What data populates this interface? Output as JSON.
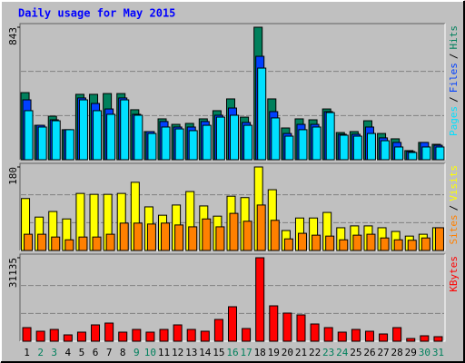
{
  "chart_data": [
    {
      "type": "bar",
      "title": "Daily usage for May 2015",
      "ylim": [
        0,
        843
      ],
      "yticks": [
        843
      ],
      "gridlines": [
        281,
        562
      ],
      "legend_separator": "/",
      "series": [
        {
          "name": "Hits",
          "color": "#00805c",
          "values": [
            427,
            219,
            277,
            191,
            416,
            416,
            421,
            421,
            318,
            179,
            260,
            225,
            231,
            260,
            312,
            387,
            271,
            843,
            387,
            202,
            260,
            254,
            323,
            173,
            179,
            248,
            167,
            133,
            58,
            110,
            98
          ]
        },
        {
          "name": "Files",
          "color": "#0040ff",
          "values": [
            381,
            219,
            254,
            191,
            393,
            358,
            323,
            393,
            289,
            179,
            243,
            208,
            208,
            243,
            283,
            329,
            237,
            658,
            306,
            167,
            225,
            225,
            306,
            162,
            162,
            208,
            139,
            110,
            52,
            110,
            92
          ]
        },
        {
          "name": "Pages",
          "color": "#00e0ff",
          "values": [
            312,
            208,
            248,
            191,
            381,
            312,
            289,
            381,
            283,
            167,
            208,
            196,
            185,
            219,
            271,
            283,
            219,
            583,
            266,
            150,
            191,
            208,
            300,
            156,
            150,
            167,
            121,
            81,
            46,
            81,
            81
          ]
        }
      ]
    },
    {
      "type": "bar",
      "ylim": [
        0,
        180
      ],
      "yticks": [
        180
      ],
      "gridlines": [
        60,
        120
      ],
      "series": [
        {
          "name": "Visits",
          "color": "#ffff00",
          "values": [
            112,
            72,
            84,
            68,
            123,
            121,
            121,
            123,
            147,
            94,
            76,
            98,
            127,
            96,
            74,
            117,
            114,
            180,
            131,
            43,
            70,
            70,
            82,
            49,
            53,
            53,
            49,
            41,
            31,
            35,
            49
          ]
        },
        {
          "name": "Sites",
          "color": "#ff8000",
          "values": [
            35,
            35,
            29,
            23,
            29,
            29,
            35,
            59,
            59,
            57,
            59,
            55,
            51,
            68,
            51,
            80,
            63,
            98,
            65,
            25,
            37,
            33,
            31,
            23,
            33,
            35,
            27,
            23,
            22,
            27,
            49
          ]
        }
      ]
    },
    {
      "type": "bar",
      "ylim": [
        0,
        31135
      ],
      "yticks": [
        31135
      ],
      "gridlines": [
        10378,
        20757
      ],
      "categories": [
        "1",
        "2",
        "3",
        "4",
        "5",
        "6",
        "7",
        "8",
        "9",
        "10",
        "11",
        "12",
        "13",
        "14",
        "15",
        "16",
        "17",
        "18",
        "19",
        "20",
        "21",
        "22",
        "23",
        "24",
        "25",
        "26",
        "27",
        "28",
        "29",
        "30",
        "31"
      ],
      "category_colors": [
        "#000000",
        "#00805c",
        "#00805c",
        "#000000",
        "#000000",
        "#000000",
        "#000000",
        "#000000",
        "#00805c",
        "#00805c",
        "#000000",
        "#000000",
        "#000000",
        "#000000",
        "#000000",
        "#00805c",
        "#00805c",
        "#000000",
        "#000000",
        "#000000",
        "#000000",
        "#000000",
        "#00805c",
        "#00805c",
        "#000000",
        "#000000",
        "#000000",
        "#000000",
        "#000000",
        "#00805c",
        "#00805c"
      ],
      "series": [
        {
          "name": "KBytes",
          "color": "#ff0000",
          "values": [
            5076,
            3722,
            4399,
            2369,
            3384,
            6091,
            6768,
            3384,
            4399,
            3384,
            4399,
            6091,
            4399,
            3722,
            8122,
            12859,
            4738,
            31135,
            13198,
            10490,
            9814,
            6430,
            5076,
            3384,
            4399,
            3722,
            2707,
            5076,
            1015,
            2030,
            1692
          ]
        }
      ]
    }
  ]
}
